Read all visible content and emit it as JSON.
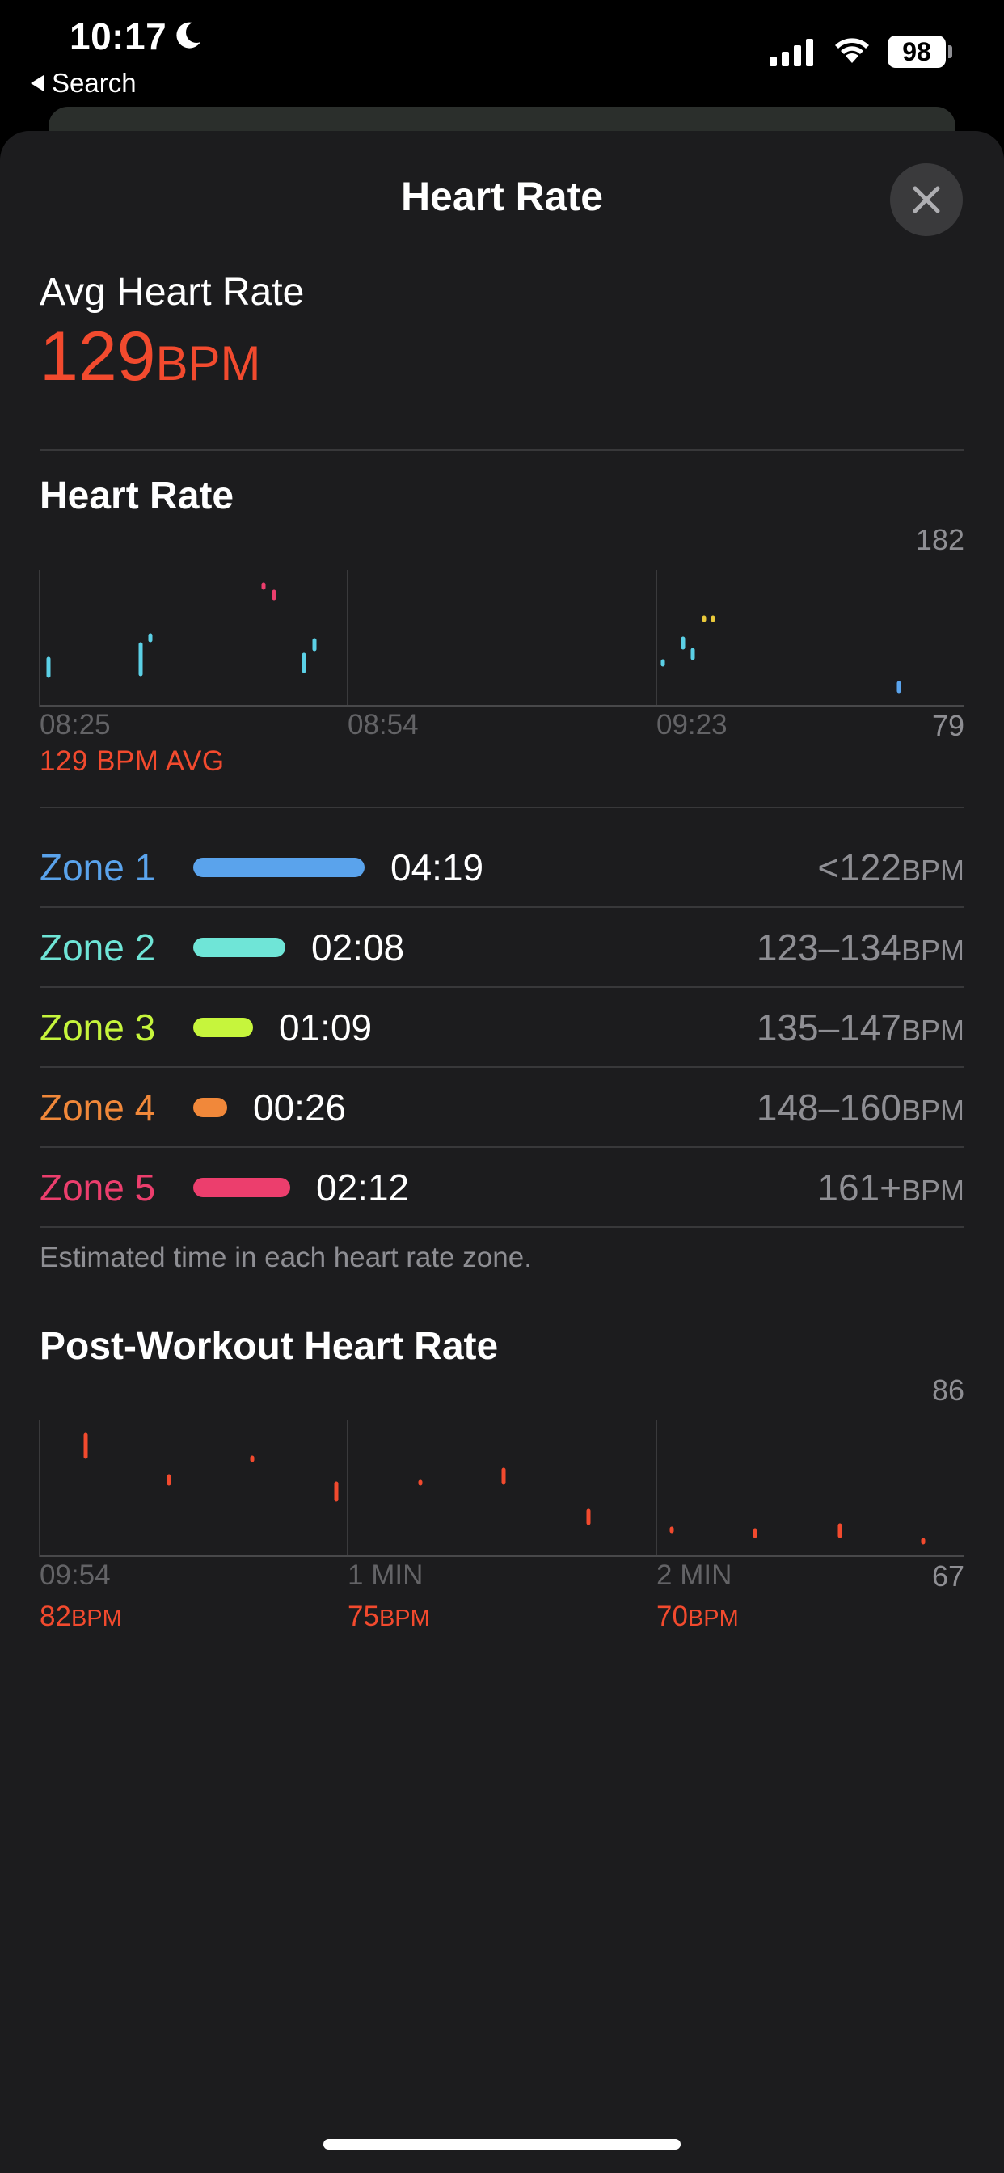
{
  "status_bar": {
    "time": "10:17",
    "back_label": "Search",
    "battery": "98"
  },
  "sheet": {
    "title": "Heart Rate"
  },
  "summary": {
    "avg_label": "Avg Heart Rate",
    "avg_value": "129",
    "avg_unit": "BPM"
  },
  "heart_rate_chart": {
    "title": "Heart Rate",
    "y_max": "182",
    "y_min": "79",
    "x_labels": [
      "08:25",
      "08:54",
      "09:23"
    ],
    "avg_caption": "129 BPM AVG"
  },
  "zones": [
    {
      "name": "Zone 1",
      "time": "04:19",
      "range": "<122",
      "unit": "BPM",
      "color": "#5aa3ec",
      "fraction": 1.0
    },
    {
      "name": "Zone 2",
      "time": "02:08",
      "range": "123–134",
      "unit": "BPM",
      "color": "#6fe5d7",
      "fraction": 0.53
    },
    {
      "name": "Zone 3",
      "time": "01:09",
      "range": "135–147",
      "unit": "BPM",
      "color": "#c6f53c",
      "fraction": 0.33
    },
    {
      "name": "Zone 4",
      "time": "00:26",
      "range": "148–160",
      "unit": "BPM",
      "color": "#f1883a",
      "fraction": 0.18
    },
    {
      "name": "Zone 5",
      "time": "02:12",
      "range": "161+",
      "unit": "BPM",
      "color": "#ec3e6d",
      "fraction": 0.56
    }
  ],
  "zone_note": "Estimated time in each heart rate zone.",
  "post_workout_chart": {
    "title": "Post-Workout Heart Rate",
    "y_max": "86",
    "y_min": "67",
    "x_labels": [
      "09:54",
      "1 MIN",
      "2 MIN"
    ],
    "values": [
      {
        "value": "82",
        "unit": "BPM"
      },
      {
        "value": "75",
        "unit": "BPM"
      },
      {
        "value": "70",
        "unit": "BPM"
      }
    ]
  },
  "colors": {
    "accent_red": "#f24a2e",
    "sheet_bg": "#1c1c1e"
  }
}
